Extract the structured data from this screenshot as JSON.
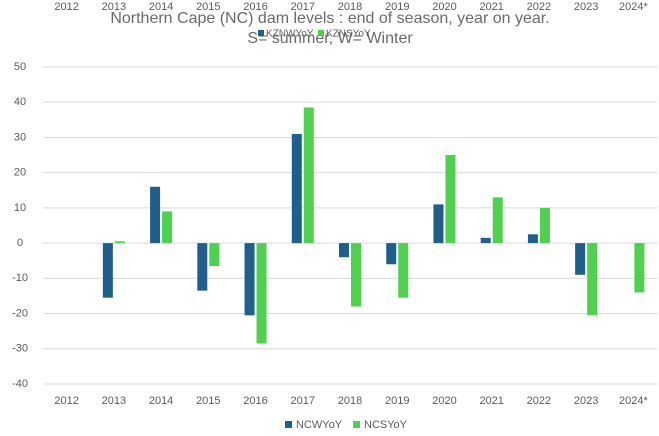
{
  "chart_data": {
    "type": "bar",
    "title": "Northern  Cape (NC) dam levels : end of season, year on year.",
    "subtitle": "S= summer, W= Winter",
    "overlay_legend": [
      "KZNWYoY",
      "KZNSYoY"
    ],
    "categories": [
      "2012",
      "2013",
      "2014",
      "2015",
      "2016",
      "2017",
      "2018",
      "2019",
      "2020",
      "2021",
      "2022",
      "2023",
      "2024*"
    ],
    "series": [
      {
        "name": "NCWYoY",
        "color": "#1f5f8b",
        "values": [
          null,
          -15.5,
          16,
          -13.5,
          -20.5,
          31,
          -4,
          -6,
          11,
          1.5,
          2.5,
          -9,
          null
        ]
      },
      {
        "name": "NCSYoY",
        "color": "#4fd04f",
        "values": [
          null,
          0.5,
          9,
          -6.5,
          -28.5,
          38.5,
          -18,
          -15.5,
          25,
          13,
          10,
          -20.5,
          -14
        ]
      }
    ],
    "ylim": [
      -40,
      50
    ],
    "yticks": [
      -40,
      -30,
      -20,
      -10,
      0,
      10,
      20,
      30,
      40,
      50
    ],
    "grid": true,
    "legend": "bottom"
  }
}
